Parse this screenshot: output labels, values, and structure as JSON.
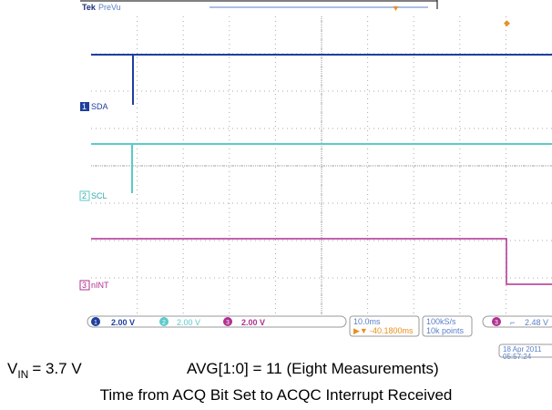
{
  "scope": {
    "brand": "Tek",
    "mode": "PreVu",
    "channels": [
      {
        "number": "1",
        "name": "SDA",
        "scale": "2.00 V"
      },
      {
        "number": "2",
        "name": "SCL",
        "scale": "2.00 V"
      },
      {
        "number": "3",
        "name": "nINT",
        "scale": "2.00 V"
      }
    ],
    "timebase": "10.0ms",
    "delay": "-40.1800ms",
    "sample_rate": "100kS/s",
    "record_length": "10k points",
    "trigger": {
      "channel": "3",
      "level": "2.48 V"
    },
    "date": "18 Apr 2011",
    "time": "05:57:24"
  },
  "caption": {
    "vin_label": "V",
    "vin_sub": "IN",
    "vin_value": "= 3.7 V",
    "avg": "AVG[1:0] = 11 (Eight Measurements)",
    "description": "Time from ACQ Bit Set to ACQC Interrupt Received"
  }
}
